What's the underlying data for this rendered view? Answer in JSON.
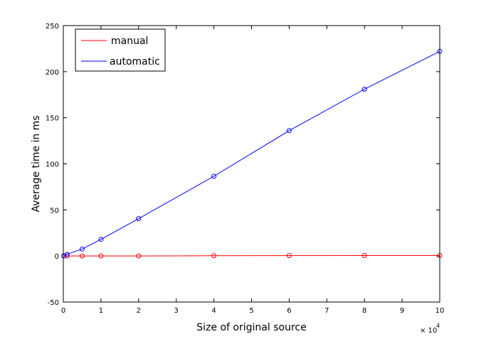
{
  "chart_data": {
    "type": "line",
    "xlabel": "Size of original source",
    "ylabel": "Average time in ms",
    "x_multiplier_label": "× 10",
    "x_multiplier_exp": "4",
    "xlim": [
      0,
      100000
    ],
    "ylim": [
      -50,
      250
    ],
    "x_ticks": [
      0,
      10000,
      20000,
      30000,
      40000,
      50000,
      60000,
      70000,
      80000,
      90000,
      100000
    ],
    "x_tick_labels": [
      "0",
      "1",
      "2",
      "3",
      "4",
      "5",
      "6",
      "7",
      "8",
      "9",
      "10"
    ],
    "y_ticks": [
      -50,
      0,
      50,
      100,
      150,
      200,
      250
    ],
    "y_tick_labels": [
      "-50",
      "0",
      "50",
      "100",
      "150",
      "200",
      "250"
    ],
    "grid": false,
    "legend_position": "top-left",
    "x": [
      100,
      1000,
      5000,
      10000,
      20000,
      40000,
      60000,
      80000,
      100000
    ],
    "series": [
      {
        "name": "manual",
        "color": "#ff0000",
        "values": [
          0,
          0,
          0,
          0,
          0,
          0.3,
          0.4,
          0.5,
          0.5
        ]
      },
      {
        "name": "automatic",
        "color": "#0000ff",
        "values": [
          0.2,
          1.8,
          7.5,
          18,
          40.5,
          86.5,
          136,
          181,
          222
        ]
      }
    ]
  }
}
